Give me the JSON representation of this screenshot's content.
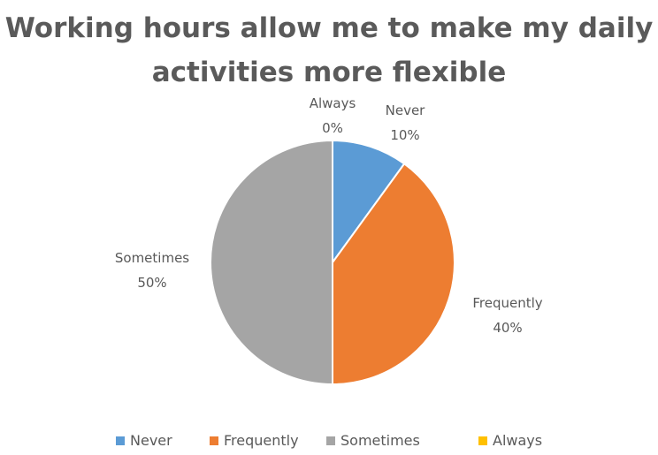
{
  "chart_data": {
    "type": "pie",
    "title_lines": [
      "Working hours allow me to make my daily",
      "activities more flexible"
    ],
    "slices": [
      {
        "name": "Never",
        "value": 10,
        "label": "10%",
        "color": "#5b9bd5"
      },
      {
        "name": "Frequently",
        "value": 40,
        "label": "40%",
        "color": "#ed7d31"
      },
      {
        "name": "Sometimes",
        "value": 50,
        "label": "50%",
        "color": "#a5a5a5"
      },
      {
        "name": "Always",
        "value": 0,
        "label": "0%",
        "color": "#ffc000"
      }
    ],
    "legend": {
      "position": "bottom",
      "items": [
        "Never",
        "Frequently",
        "Sometimes",
        "Always"
      ]
    },
    "data_labels": "category name and percentage"
  }
}
